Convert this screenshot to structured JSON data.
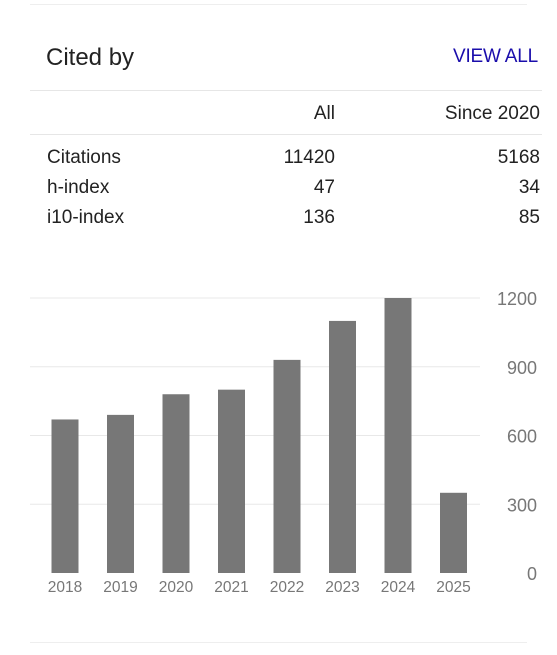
{
  "card": {
    "title": "Cited by",
    "view_all": "VIEW ALL"
  },
  "table": {
    "columns": [
      "All",
      "Since 2020"
    ],
    "rows": [
      {
        "label": "Citations",
        "all": "11420",
        "since": "5168"
      },
      {
        "label": "h-index",
        "all": "47",
        "since": "34"
      },
      {
        "label": "i10-index",
        "all": "136",
        "since": "85"
      }
    ]
  },
  "colors": {
    "link": "#1a0dab",
    "bar": "#777777",
    "grid": "#e8e8e8",
    "axis_text": "#777777"
  },
  "chart_data": {
    "type": "bar",
    "categories": [
      "2018",
      "2019",
      "2020",
      "2021",
      "2022",
      "2023",
      "2024",
      "2025"
    ],
    "values": [
      670,
      690,
      780,
      800,
      930,
      1100,
      1200,
      350
    ],
    "yticks": [
      0,
      300,
      600,
      900,
      1200
    ],
    "ylim": [
      0,
      1200
    ],
    "y_axis_position": "right",
    "grid": true
  }
}
